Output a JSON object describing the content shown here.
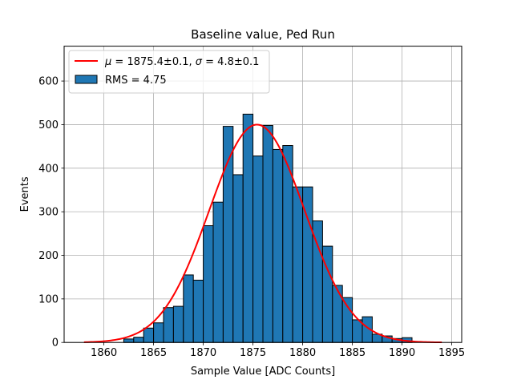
{
  "chart_data": {
    "type": "bar",
    "title": "Baseline value, Ped Run",
    "xlabel": "Sample Value [ADC Counts]",
    "ylabel": "Events",
    "xlim": [
      1856,
      1896
    ],
    "ylim": [
      0,
      680
    ],
    "xticks": [
      1860,
      1865,
      1870,
      1875,
      1880,
      1885,
      1890,
      1895
    ],
    "yticks": [
      0,
      100,
      200,
      300,
      400,
      500,
      600
    ],
    "grid": true,
    "legend_position": "top-left",
    "histogram": {
      "bin_edges": [
        1862,
        1863,
        1864,
        1865,
        1866,
        1867,
        1868,
        1869,
        1870,
        1871,
        1872,
        1873,
        1874,
        1875,
        1876,
        1877,
        1878,
        1879,
        1880,
        1881,
        1882,
        1883,
        1884,
        1885,
        1886,
        1887,
        1888,
        1889,
        1890
      ],
      "values": [
        8,
        12,
        33,
        45,
        80,
        83,
        155,
        143,
        268,
        322,
        496,
        385,
        524,
        428,
        498,
        443,
        452,
        357,
        357,
        279,
        221,
        131,
        103,
        52,
        59,
        19,
        15,
        9,
        11
      ],
      "bar_color": "#1f77b4",
      "edge_color": "#000000",
      "legend_label": "RMS = 4.75"
    },
    "fit": {
      "type": "gaussian",
      "mu": 1875.4,
      "sigma": 4.8,
      "amplitude": 500,
      "x_range": [
        1858,
        1894
      ],
      "color": "#ff0000",
      "legend_label_parts": [
        "μ",
        " = 1875.4±0.1, ",
        "σ",
        " = 4.8±0.1"
      ]
    }
  }
}
